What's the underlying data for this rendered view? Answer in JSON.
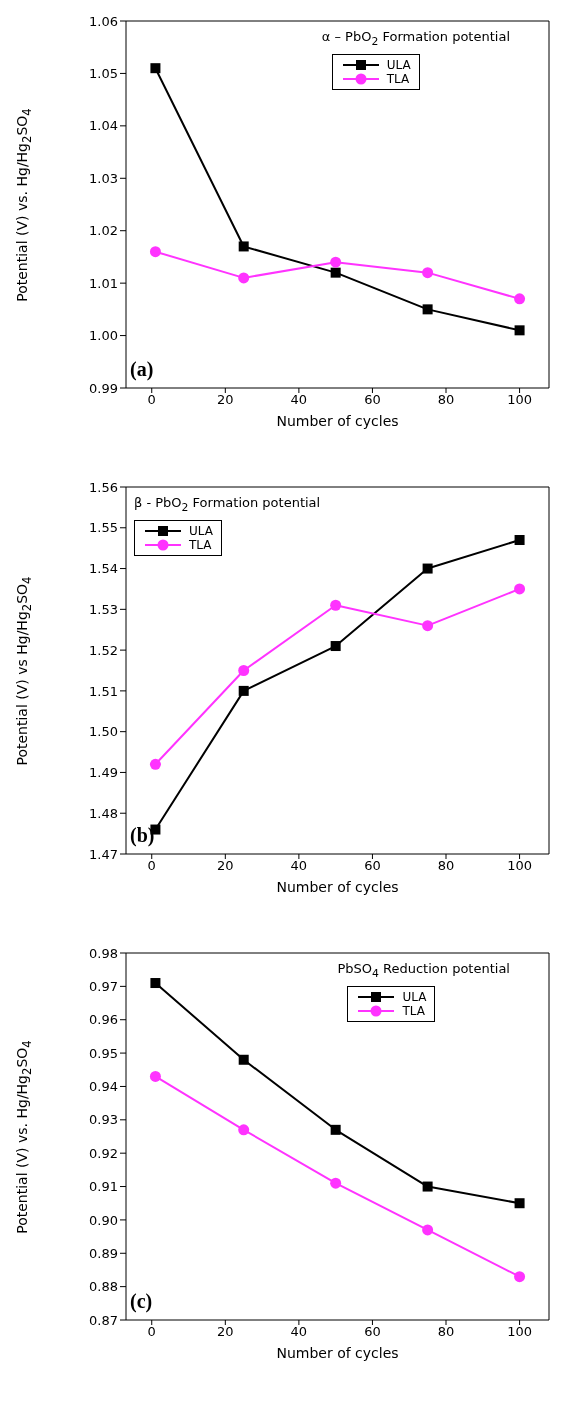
{
  "chart_data": [
    {
      "type": "line",
      "title": "α – PbO$_{2}$ Formation potential",
      "xlabel": "Number of cycles",
      "ylabel": "Potential (V) vs. Hg/Hg$_{2}$SO$_{4}$",
      "annotations": [
        "(a)"
      ],
      "x": [
        1,
        25,
        50,
        75,
        100
      ],
      "xlim": [
        -7,
        108
      ],
      "xticks": [
        0,
        20,
        40,
        60,
        80,
        100
      ],
      "ylim": [
        0.99,
        1.06
      ],
      "yticks": [
        {
          "value": 0.99,
          "label": "0.99"
        },
        {
          "value": 1.0,
          "label": "1.00"
        },
        {
          "value": 1.01,
          "label": "1.01"
        },
        {
          "value": 1.02,
          "label": "1.02"
        },
        {
          "value": 1.03,
          "label": "1.03"
        },
        {
          "value": 1.04,
          "label": "1.04"
        },
        {
          "value": 1.05,
          "label": "1.05"
        },
        {
          "value": 1.06,
          "label": "1.06"
        }
      ],
      "legend": "top right",
      "series": [
        {
          "name": "ULA",
          "color": "#000000",
          "marker": "square",
          "values": [
            1.051,
            1.017,
            1.012,
            1.005,
            1.001
          ]
        },
        {
          "name": "TLA",
          "color": "#ff33ff",
          "marker": "circle",
          "values": [
            1.016,
            1.011,
            1.014,
            1.012,
            1.007
          ]
        }
      ]
    },
    {
      "type": "line",
      "title": "β - PbO$_{2}$ Formation potential",
      "xlabel": "Number of cycles",
      "ylabel": "Potential (V) vs Hg/Hg$_{2}$SO$_{4}$",
      "annotations": [
        "(b)"
      ],
      "x": [
        1,
        25,
        50,
        75,
        100
      ],
      "xlim": [
        -7,
        108
      ],
      "xticks": [
        0,
        20,
        40,
        60,
        80,
        100
      ],
      "ylim": [
        1.47,
        1.56
      ],
      "yticks": [
        {
          "value": 1.47,
          "label": "1.47"
        },
        {
          "value": 1.48,
          "label": "1.48"
        },
        {
          "value": 1.49,
          "label": "1.49"
        },
        {
          "value": 1.5,
          "label": "1.50"
        },
        {
          "value": 1.51,
          "label": "1.51"
        },
        {
          "value": 1.52,
          "label": "1.52"
        },
        {
          "value": 1.53,
          "label": "1.53"
        },
        {
          "value": 1.54,
          "label": "1.54"
        },
        {
          "value": 1.55,
          "label": "1.55"
        },
        {
          "value": 1.56,
          "label": "1.56"
        }
      ],
      "legend": "top left",
      "series": [
        {
          "name": "ULA",
          "color": "#000000",
          "marker": "square",
          "values": [
            1.476,
            1.51,
            1.521,
            1.54,
            1.547
          ]
        },
        {
          "name": "TLA",
          "color": "#ff33ff",
          "marker": "circle",
          "values": [
            1.492,
            1.515,
            1.531,
            1.526,
            1.535
          ]
        }
      ]
    },
    {
      "type": "line",
      "title": "PbSO$_{4}$ Reduction potential",
      "xlabel": "Number of cycles",
      "ylabel": "Potential (V) vs. Hg/Hg$_{2}$SO$_{4}$",
      "annotations": [
        "(c)"
      ],
      "x": [
        1,
        25,
        50,
        75,
        100
      ],
      "xlim": [
        -7,
        108
      ],
      "xticks": [
        0,
        20,
        40,
        60,
        80,
        100
      ],
      "ylim": [
        0.87,
        0.98
      ],
      "yticks": [
        {
          "value": 0.87,
          "label": "0.87"
        },
        {
          "value": 0.88,
          "label": "0.88"
        },
        {
          "value": 0.89,
          "label": "0.89"
        },
        {
          "value": 0.9,
          "label": "0.90"
        },
        {
          "value": 0.91,
          "label": "0.91"
        },
        {
          "value": 0.92,
          "label": "0.92"
        },
        {
          "value": 0.93,
          "label": "0.93"
        },
        {
          "value": 0.94,
          "label": "0.94"
        },
        {
          "value": 0.95,
          "label": "0.95"
        },
        {
          "value": 0.96,
          "label": "0.96"
        },
        {
          "value": 0.97,
          "label": "0.97"
        },
        {
          "value": 0.98,
          "label": "0.98"
        }
      ],
      "legend": "top right",
      "series": [
        {
          "name": "ULA",
          "color": "#000000",
          "marker": "square",
          "values": [
            0.971,
            0.948,
            0.927,
            0.91,
            0.905
          ]
        },
        {
          "name": "TLA",
          "color": "#ff33ff",
          "marker": "circle",
          "values": [
            0.943,
            0.927,
            0.911,
            0.897,
            0.883
          ]
        }
      ]
    }
  ]
}
